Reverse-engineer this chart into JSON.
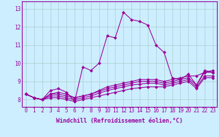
{
  "bg_color": "#cceeff",
  "line_color": "#990099",
  "grid_color": "#aacccc",
  "xlabel": "Windchill (Refroidissement éolien,°C)",
  "xtick_labels": [
    "0",
    "1",
    "2",
    "3",
    "4",
    "5",
    "6",
    "7",
    "8",
    "9",
    "10",
    "11",
    "12",
    "13",
    "14",
    "15",
    "16",
    "17",
    "18",
    "19",
    "20",
    "21",
    "22",
    "23"
  ],
  "ytick_labels": [
    "8",
    "9",
    "10",
    "11",
    "12",
    "13"
  ],
  "yticks": [
    8,
    9,
    10,
    11,
    12,
    13
  ],
  "ylim": [
    7.6,
    13.4
  ],
  "xlim": [
    -0.5,
    23.5
  ],
  "series": [
    [
      8.3,
      8.1,
      8.0,
      8.5,
      8.6,
      8.4,
      7.9,
      9.8,
      9.6,
      10.0,
      11.5,
      11.4,
      12.8,
      12.4,
      12.3,
      12.1,
      11.0,
      10.6,
      9.2,
      9.1,
      9.4,
      8.8,
      9.6,
      9.5
    ],
    [
      8.3,
      8.1,
      8.0,
      8.3,
      8.4,
      8.3,
      8.1,
      8.2,
      8.3,
      8.5,
      8.7,
      8.8,
      8.9,
      9.0,
      9.1,
      9.1,
      9.1,
      9.0,
      9.1,
      9.2,
      9.3,
      9.3,
      9.5,
      9.6
    ],
    [
      8.3,
      8.1,
      8.0,
      8.3,
      8.3,
      8.2,
      8.1,
      8.2,
      8.3,
      8.45,
      8.6,
      8.7,
      8.8,
      8.9,
      9.0,
      9.0,
      9.0,
      8.9,
      9.0,
      9.1,
      9.2,
      8.8,
      9.5,
      9.5
    ],
    [
      8.3,
      8.1,
      8.0,
      8.2,
      8.2,
      8.1,
      8.0,
      8.1,
      8.2,
      8.35,
      8.5,
      8.6,
      8.7,
      8.8,
      8.85,
      8.9,
      8.9,
      8.8,
      8.9,
      9.0,
      9.1,
      8.7,
      9.3,
      9.3
    ],
    [
      8.3,
      8.1,
      8.0,
      8.1,
      8.1,
      8.0,
      7.9,
      8.0,
      8.1,
      8.2,
      8.3,
      8.4,
      8.5,
      8.6,
      8.65,
      8.7,
      8.7,
      8.7,
      8.8,
      8.9,
      9.0,
      8.6,
      9.2,
      9.2
    ]
  ],
  "marker": "D",
  "markersize": 2.0,
  "linewidth": 0.8,
  "tick_fontsize": 5.5,
  "label_fontsize": 6.0
}
